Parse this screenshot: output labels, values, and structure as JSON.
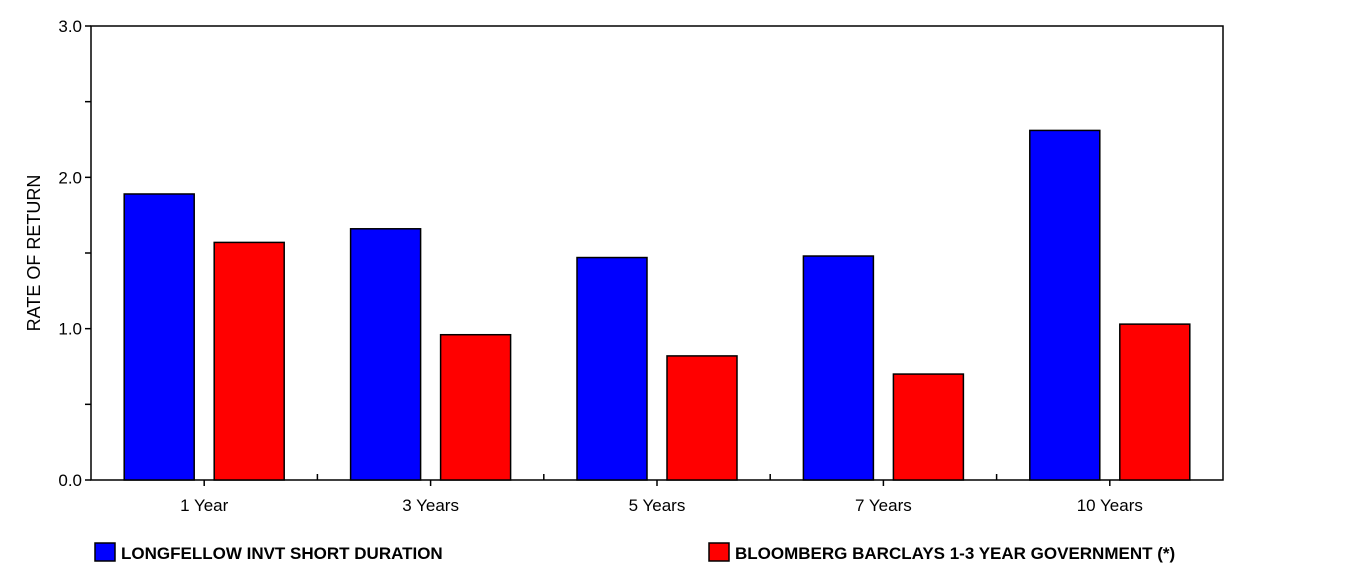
{
  "chart_data": {
    "type": "bar",
    "title": "",
    "xlabel": "",
    "ylabel": "RATE OF RETURN",
    "ylim": [
      0,
      3.0
    ],
    "y_ticks": [
      "0.0",
      "1.0",
      "2.0",
      "3.0"
    ],
    "y_tick_values": [
      0,
      1,
      2,
      3
    ],
    "y_minor_tick_values": [
      0.5,
      1.5,
      2.5
    ],
    "grid": false,
    "legend_position": "bottom",
    "categories": [
      "1 Year",
      "3 Years",
      "5 Years",
      "7 Years",
      "10 Years"
    ],
    "series": [
      {
        "name": "LONGFELLOW INVT SHORT DURATION",
        "color": "#0000ff",
        "values": [
          1.89,
          1.66,
          1.47,
          1.48,
          2.31
        ]
      },
      {
        "name": "BLOOMBERG BARCLAYS 1-3 YEAR GOVERNMENT (*)",
        "color": "#ff0000",
        "values": [
          1.57,
          0.96,
          0.82,
          0.7,
          1.03
        ]
      }
    ]
  }
}
